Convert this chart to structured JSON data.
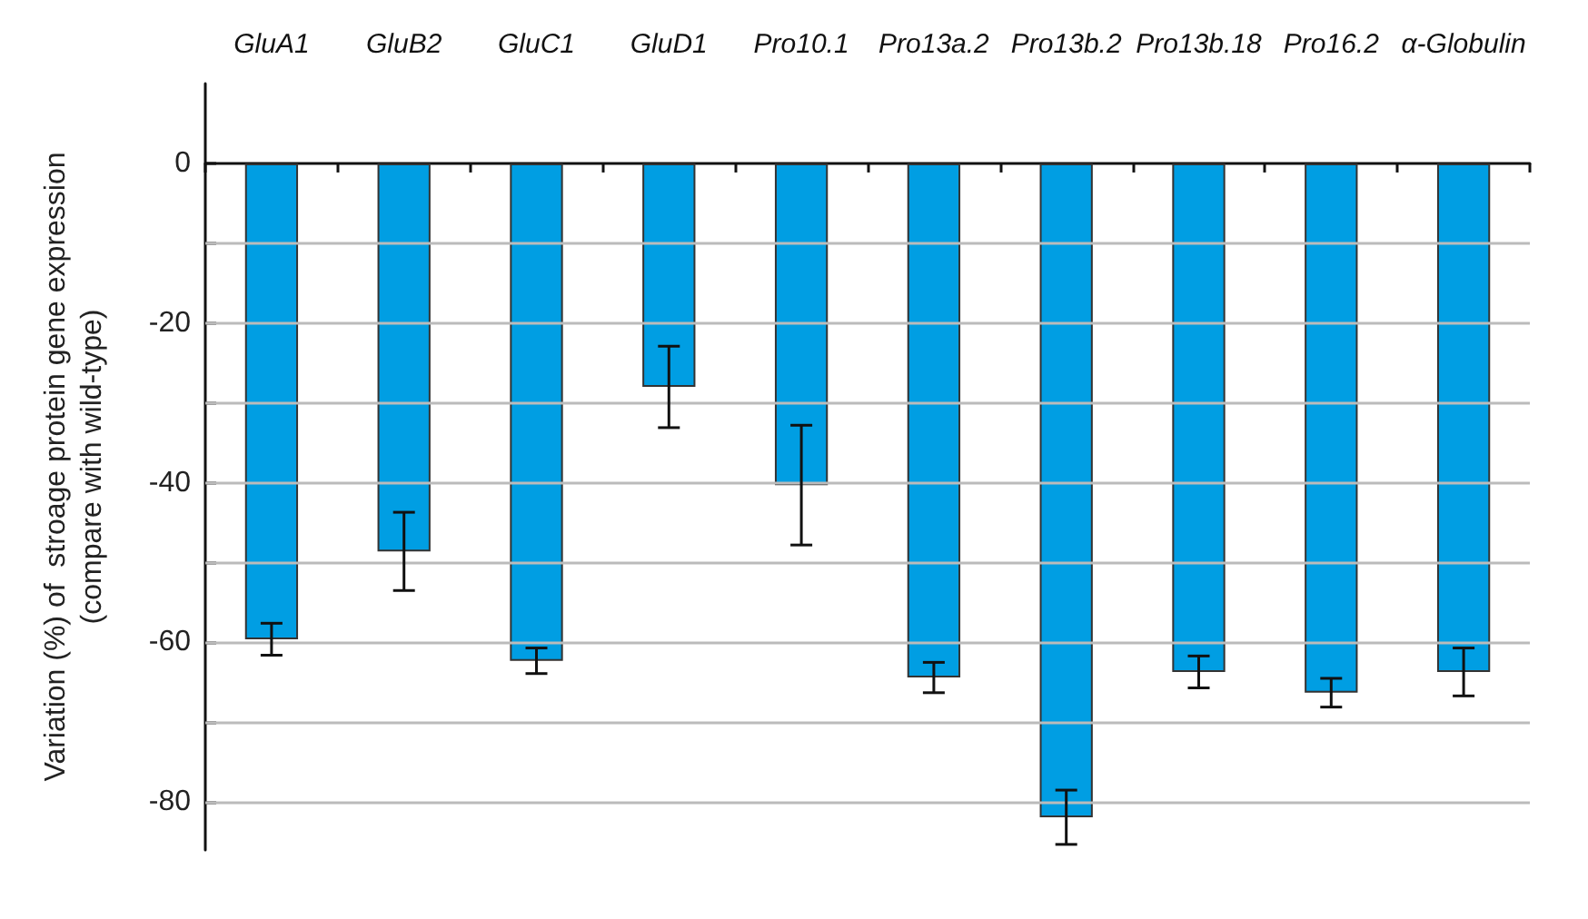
{
  "chart_data": {
    "type": "bar",
    "ylabel": "Variation (%) of  stroage protein gene expression\n(compare with wild-type)",
    "categories": [
      "GluA1",
      "GluB2",
      "GluC1",
      "GluD1",
      "Pro10.1",
      "Pro13a.2",
      "Pro13b.2",
      "Pro13b.18",
      "Pro16.2",
      "α-Globulin"
    ],
    "series": [
      {
        "color": "#009ee3",
        "values": [
          -59.6,
          -48.6,
          -62.3,
          -28,
          -40.3,
          -64.4,
          -81.9,
          -63.7,
          -66.3,
          -63.7
        ],
        "errors": [
          2,
          4.9,
          1.6,
          5.1,
          7.5,
          1.9,
          3.4,
          2,
          1.8,
          3
        ]
      }
    ],
    "ylim": [
      -86,
      10
    ],
    "yticks": [
      0,
      {
        "value": -10,
        "label": null
      },
      -20,
      {
        "value": -30,
        "label": null
      },
      -40,
      {
        "value": -50,
        "label": null
      },
      -60,
      {
        "value": -70,
        "label": null
      },
      -80
    ],
    "grid": "y"
  }
}
